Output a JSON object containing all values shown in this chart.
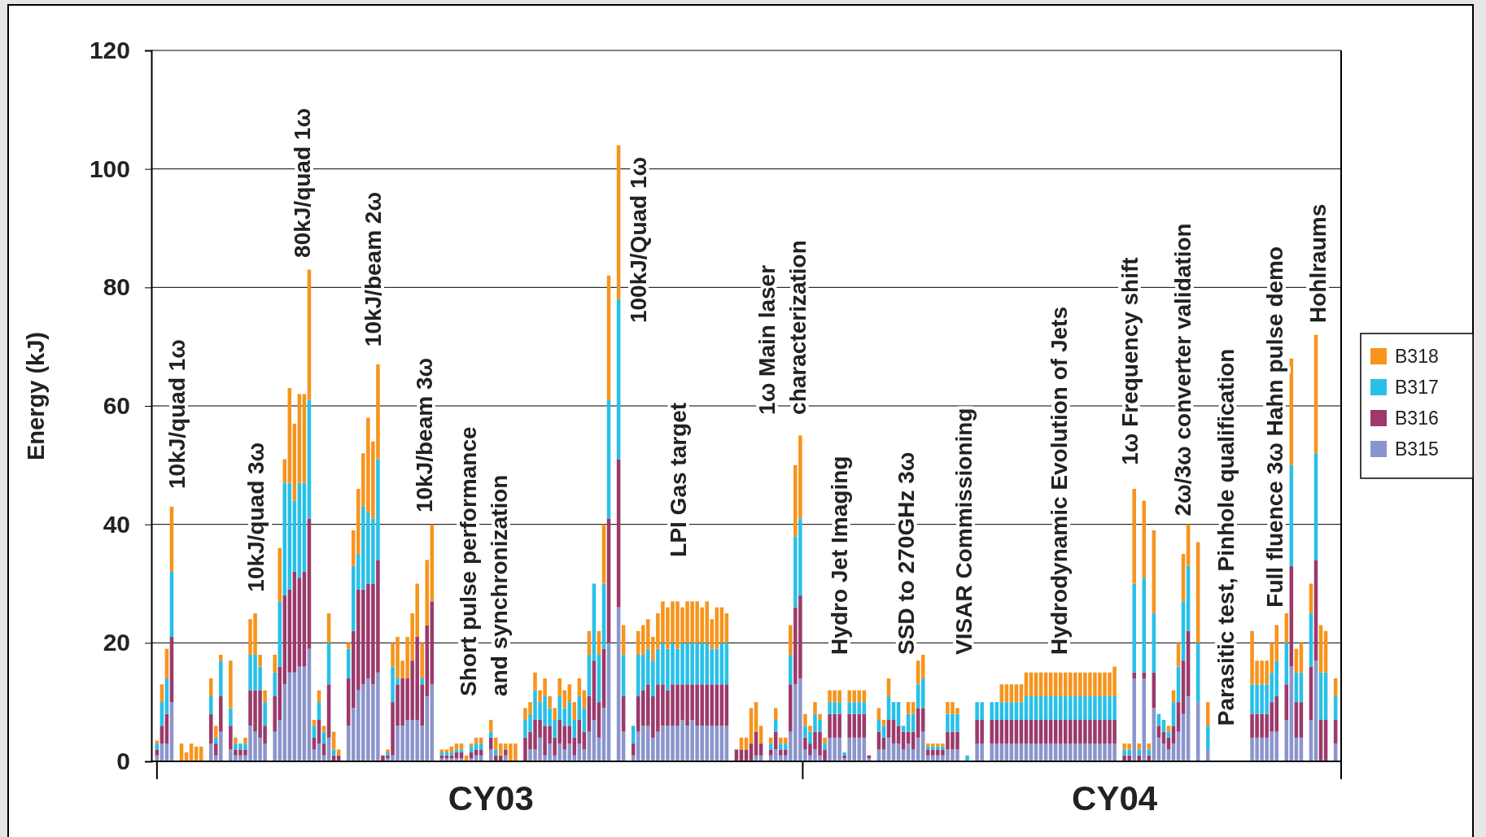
{
  "chart_data": {
    "type": "bar",
    "stacked": true,
    "ylabel": "Energy (kJ)",
    "ylim": [
      0,
      120
    ],
    "yticks": [
      0,
      20,
      40,
      60,
      80,
      100,
      120
    ],
    "grid": "y",
    "legend": "right",
    "categories": [
      null,
      null,
      null,
      null,
      null,
      null,
      null,
      null,
      null,
      null,
      null,
      null,
      null,
      null,
      null,
      null,
      null,
      null,
      null,
      null,
      null,
      null,
      null,
      null,
      null,
      null,
      null,
      null,
      null,
      null,
      null,
      null,
      null,
      null,
      null,
      null,
      null,
      null,
      null,
      null,
      null,
      null,
      null,
      null,
      null,
      null,
      null,
      null,
      null,
      null,
      null,
      null,
      null,
      null,
      null,
      null,
      null,
      null,
      null,
      null,
      null,
      null,
      null,
      null,
      null,
      null,
      null,
      null,
      "CY03",
      null,
      null,
      null,
      null,
      null,
      null,
      null,
      null,
      null,
      null,
      null,
      null,
      null,
      null,
      null,
      null,
      null,
      null,
      null,
      null,
      null,
      null,
      null,
      null,
      null,
      null,
      null,
      null,
      null,
      null,
      null,
      null,
      null,
      null,
      null,
      null,
      null,
      null,
      null,
      null,
      null,
      null,
      null,
      null,
      null,
      null,
      null,
      null,
      null,
      null,
      null,
      null,
      null,
      null,
      null,
      null,
      null,
      null,
      null,
      null,
      null,
      null,
      null,
      null,
      null,
      null,
      null,
      null,
      null,
      null,
      null,
      null,
      null,
      null,
      null,
      null,
      null,
      null,
      null,
      null,
      null,
      null,
      null,
      null,
      null,
      null,
      null,
      null,
      null,
      null,
      null,
      null,
      null,
      null,
      null,
      null,
      null,
      null,
      null,
      null,
      null,
      null,
      null,
      null,
      null,
      null,
      null,
      null,
      null,
      null,
      null,
      null,
      null,
      null,
      null,
      null,
      null,
      null,
      null,
      null,
      null,
      null,
      null,
      null,
      null,
      null,
      "CY04",
      null,
      null,
      null,
      null,
      null,
      null,
      null,
      null,
      null,
      null,
      null,
      null,
      null,
      null,
      null,
      null,
      null,
      null,
      null,
      null,
      null,
      null,
      null,
      null,
      null,
      null,
      null,
      null,
      null,
      null,
      null,
      null,
      null,
      null,
      null,
      null,
      null,
      null,
      null,
      null,
      null,
      null,
      null,
      null,
      null
    ],
    "series": [
      {
        "name": "B315",
        "color": "#8b95cc",
        "values": [
          1,
          3,
          3,
          10,
          null,
          0,
          0,
          0,
          0,
          0,
          null,
          3,
          1,
          5,
          null,
          2,
          1,
          1,
          1,
          6,
          5,
          4,
          3,
          null,
          5,
          7,
          13,
          15,
          15,
          16,
          16,
          19,
          2,
          3,
          1,
          4,
          0,
          0,
          null,
          6,
          9,
          12,
          13,
          14,
          13,
          15,
          0,
          0.5,
          1,
          6,
          6,
          7,
          7,
          7,
          6,
          11,
          13,
          null,
          0.5,
          0.5,
          0.5,
          0.5,
          0.5,
          0,
          0.5,
          1,
          1,
          null,
          2,
          0,
          0,
          1,
          0,
          0,
          null,
          0,
          2,
          2,
          4,
          1,
          3,
          1,
          3,
          2,
          3,
          1,
          3,
          2,
          5,
          7,
          4,
          9,
          20,
          null,
          26,
          5,
          null,
          1,
          5,
          6,
          6,
          4,
          5,
          6,
          6,
          6,
          6,
          7,
          6,
          7,
          6,
          6,
          6,
          6,
          6,
          6,
          6,
          null,
          0,
          0,
          0,
          0,
          1,
          1,
          null,
          1,
          2,
          1,
          1,
          5,
          13,
          14,
          2,
          1,
          2,
          1,
          0,
          4,
          4,
          4,
          0.5,
          4,
          4,
          4,
          4,
          0.5,
          null,
          2,
          2,
          4,
          3,
          3,
          2,
          3,
          2,
          4,
          5,
          1,
          1,
          1,
          1,
          2,
          2,
          2,
          null,
          0,
          null,
          3,
          3,
          null,
          3,
          3,
          3,
          3,
          3,
          3,
          3,
          3,
          3,
          3,
          3,
          3,
          3,
          3,
          3,
          3,
          3,
          3,
          3,
          3,
          3,
          3,
          3,
          3,
          3,
          3,
          null,
          0,
          0,
          14,
          0,
          14,
          0,
          9,
          4,
          3,
          2,
          3,
          5,
          8,
          11,
          null,
          10,
          null,
          2,
          null,
          null,
          null,
          null,
          null,
          null,
          null,
          null,
          4,
          4,
          4,
          4,
          5,
          5,
          null,
          7,
          16,
          4,
          4,
          null,
          7,
          17,
          0,
          0,
          null,
          3
        ]
      },
      {
        "name": "B316",
        "color": "#9b3a6b",
        "values": [
          1,
          3,
          5,
          11,
          null,
          0,
          0,
          0,
          0,
          0,
          null,
          5,
          2,
          6,
          null,
          4,
          1,
          1,
          1,
          6,
          7,
          8,
          3,
          null,
          6,
          9,
          15,
          14,
          17,
          15,
          16,
          22,
          2,
          4,
          2,
          9,
          1,
          1,
          null,
          8,
          13,
          17,
          16,
          16,
          17,
          19,
          1,
          0.5,
          9,
          7,
          8,
          7,
          10,
          14,
          7,
          12,
          14,
          null,
          0.5,
          0.5,
          0.5,
          1,
          1,
          0,
          1,
          1,
          1,
          null,
          2,
          1,
          1,
          1,
          0,
          0,
          null,
          4,
          3,
          5,
          3,
          5,
          3,
          3,
          4,
          4,
          3,
          3,
          4,
          3,
          6,
          10,
          6,
          10,
          21,
          null,
          25,
          6,
          null,
          2,
          6,
          6,
          7,
          7,
          8,
          7,
          6,
          7,
          7,
          6,
          7,
          6,
          7,
          7,
          7,
          7,
          7,
          7,
          7,
          null,
          2,
          2,
          2,
          3,
          4,
          2,
          null,
          1,
          3,
          1,
          1,
          8,
          13,
          14,
          2,
          2,
          3,
          4,
          2,
          4,
          4,
          4,
          0.5,
          4,
          4,
          4,
          4,
          0.5,
          null,
          3,
          2,
          3,
          4,
          3,
          3,
          2,
          3,
          5,
          4,
          1,
          1,
          1,
          1,
          3,
          3,
          3,
          null,
          0,
          null,
          4,
          4,
          null,
          4,
          4,
          4,
          4,
          4,
          4,
          4,
          4,
          4,
          4,
          4,
          4,
          4,
          4,
          4,
          4,
          4,
          4,
          4,
          4,
          4,
          4,
          4,
          4,
          4,
          4,
          null,
          1,
          1,
          1,
          1,
          1,
          1,
          6,
          2,
          2,
          2,
          3,
          5,
          9,
          11,
          null,
          0,
          null,
          0,
          null,
          null,
          null,
          null,
          null,
          null,
          null,
          null,
          4,
          4,
          4,
          4,
          5,
          6,
          null,
          6,
          17,
          6,
          6,
          null,
          9,
          17,
          7,
          7,
          null,
          4
        ]
      },
      {
        "name": "B317",
        "color": "#29c0e8",
        "values": [
          1,
          4,
          6,
          11,
          null,
          0,
          0,
          0,
          0,
          0,
          null,
          3,
          1,
          6,
          null,
          3,
          1,
          1,
          1,
          6,
          6,
          4,
          4,
          null,
          4,
          11,
          19,
          18,
          12,
          16,
          15,
          20,
          2,
          3,
          2,
          7,
          1,
          0,
          null,
          5,
          11,
          6,
          14,
          12,
          11,
          17,
          0,
          0.5,
          6,
          1,
          0,
          0,
          0,
          0,
          1,
          0,
          0,
          null,
          0.5,
          0.5,
          0.5,
          0.5,
          0.5,
          0,
          1,
          1,
          1,
          null,
          1,
          1,
          0,
          0,
          0,
          0,
          null,
          3,
          3,
          5,
          3,
          5,
          3,
          3,
          4,
          3,
          4,
          3,
          4,
          4,
          7,
          13,
          8,
          11,
          20,
          null,
          27,
          7,
          null,
          3,
          7,
          6,
          6,
          6,
          6,
          7,
          7,
          7,
          6,
          7,
          7,
          7,
          7,
          7,
          7,
          6,
          6,
          7,
          7,
          null,
          0,
          0,
          0,
          0,
          0,
          0,
          null,
          1,
          2,
          1,
          1,
          5,
          12,
          13,
          2,
          2,
          3,
          2,
          1,
          2,
          2,
          2,
          0.5,
          2,
          2,
          2,
          2,
          0,
          null,
          2,
          2,
          4,
          3,
          4,
          1,
          3,
          3,
          4,
          5,
          0.5,
          0.5,
          0.5,
          0.5,
          3,
          3,
          3,
          null,
          1,
          null,
          3,
          3,
          null,
          3,
          3,
          3,
          3,
          3,
          3,
          3,
          4,
          4,
          4,
          4,
          4,
          4,
          4,
          4,
          4,
          4,
          4,
          4,
          4,
          4,
          4,
          4,
          4,
          4,
          4,
          null,
          1,
          1,
          15,
          1,
          16,
          1,
          10,
          2,
          2,
          1,
          4,
          6,
          10,
          11,
          null,
          10,
          null,
          4,
          null,
          null,
          null,
          null,
          null,
          null,
          null,
          null,
          5,
          5,
          5,
          5,
          5,
          6,
          null,
          7,
          17,
          5,
          5,
          null,
          9,
          18,
          8,
          8,
          null,
          4
        ]
      },
      {
        "name": "B318",
        "color": "#f7941d",
        "values": [
          0.5,
          3,
          5,
          11,
          null,
          3,
          1.5,
          3,
          2.5,
          2.5,
          null,
          3,
          2,
          1,
          null,
          8,
          1,
          0,
          1,
          6,
          7,
          2,
          2,
          null,
          3,
          9,
          4,
          16,
          13,
          15,
          15,
          22,
          1,
          2,
          1,
          5,
          3,
          1,
          null,
          1,
          6,
          11,
          9,
          16,
          13,
          16,
          0,
          0.5,
          4,
          7,
          3,
          7,
          8,
          9,
          6,
          11,
          13,
          null,
          0.5,
          0.5,
          1,
          1,
          1,
          1,
          0.5,
          1,
          1,
          null,
          2,
          2,
          2,
          1,
          3,
          3,
          null,
          2,
          2,
          3,
          2,
          3,
          2,
          2,
          3,
          3,
          3,
          3,
          3,
          3,
          4,
          0,
          4,
          10,
          21,
          null,
          26,
          5,
          null,
          0,
          4,
          5,
          5,
          4,
          6,
          7,
          7,
          7,
          8,
          6,
          7,
          7,
          7,
          6,
          7,
          5,
          7,
          6,
          5,
          null,
          0,
          2,
          2,
          6,
          5,
          3,
          null,
          1,
          2,
          1,
          1,
          5,
          12,
          14,
          2,
          1,
          2,
          1,
          1,
          2,
          2,
          2,
          0,
          2,
          2,
          2,
          2,
          0,
          null,
          2,
          1,
          3,
          0,
          0,
          0,
          2,
          2,
          4,
          4,
          0.5,
          0.5,
          0.5,
          0.5,
          2,
          2,
          1,
          null,
          0,
          null,
          0,
          0,
          null,
          0,
          0,
          3,
          3,
          3,
          3,
          3,
          4,
          4,
          4,
          4,
          4,
          4,
          4,
          4,
          4,
          4,
          4,
          4,
          4,
          4,
          4,
          4,
          4,
          4,
          5,
          null,
          1,
          1,
          16,
          1,
          13,
          1,
          14,
          0,
          0,
          1,
          2,
          4,
          8,
          7,
          null,
          17,
          null,
          4,
          null,
          null,
          null,
          null,
          null,
          null,
          null,
          null,
          9,
          4,
          4,
          4,
          5,
          6,
          null,
          5,
          18,
          4,
          5,
          null,
          5,
          20,
          8,
          7,
          null,
          3
        ]
      }
    ],
    "annotations": [
      "10kJ/quad 1ω",
      "10kJ/quad 3ω",
      "80kJ/quad 1ω",
      "10kJ/beam 2ω",
      "10kJ/beam 3ω",
      "Short pulse performance\nand synchronization",
      "100kJ/Quad 1ω",
      "LPI Gas target",
      "1ω Main laser\ncharacterization",
      "Hydro Jet Imaging",
      "SSD to 270GHz 3ω",
      "VISAR Commissioning",
      "Hydrodynamic Evolution of Jets",
      "1ω Frequency shift",
      "2ω/3ω converter validation",
      "Parasitic test, Pinhole qualification",
      "Full fluence 3ω Hahn pulse demo",
      "Hohlraums"
    ]
  }
}
